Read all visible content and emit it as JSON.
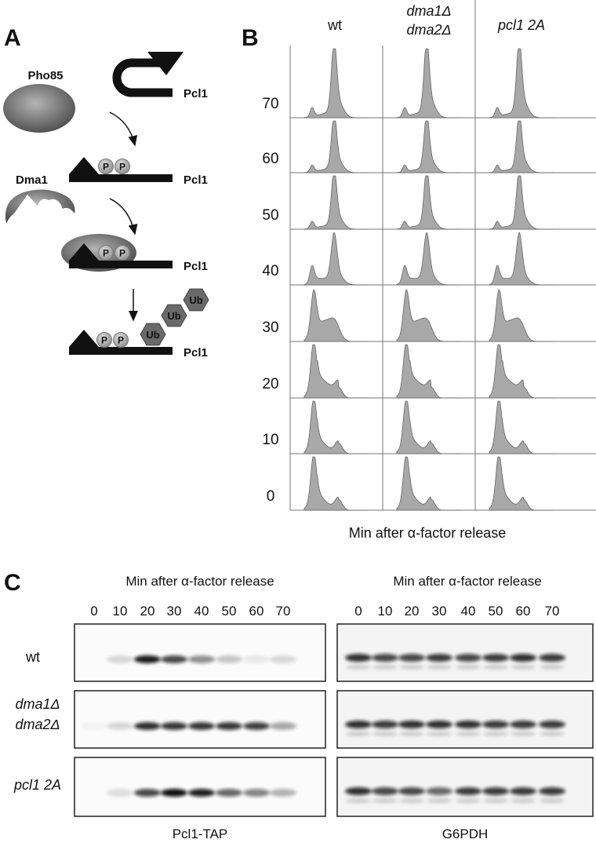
{
  "panel_a": {
    "label": "A",
    "kinase": "Pho85",
    "ligase": "Dma1",
    "steps": [
      {
        "substrate": "Pcl1"
      },
      {
        "substrate": "Pcl1",
        "phospho": [
          "P",
          "P"
        ]
      },
      {
        "substrate": "Pcl1",
        "phospho": [
          "P",
          "P"
        ]
      },
      {
        "substrate": "Pcl1",
        "phospho": [
          "P",
          "P"
        ],
        "ubiquitin": [
          "Ub",
          "Ub",
          "Ub"
        ]
      }
    ]
  },
  "panel_b": {
    "label": "B",
    "columns": [
      [
        "wt"
      ],
      [
        "dma1Δ",
        "dma2Δ"
      ],
      [
        "pcl1 2A"
      ]
    ],
    "rows": [
      70,
      60,
      50,
      40,
      30,
      20,
      10,
      0
    ],
    "x_label": "Min after α-factor release"
  },
  "panel_c": {
    "label": "C",
    "blots": [
      {
        "title": "Min after α-factor release",
        "lanes": [
          0,
          10,
          20,
          30,
          40,
          50,
          60,
          70
        ],
        "caption": "Pcl1-TAP"
      },
      {
        "title": "Min after α-factor release",
        "lanes": [
          0,
          10,
          20,
          30,
          40,
          50,
          60,
          70
        ],
        "caption": "G6PDH"
      }
    ],
    "rows": [
      [
        "wt"
      ],
      [
        "dma1Δ",
        "dma2Δ"
      ],
      [
        "pcl1 2A"
      ]
    ]
  }
}
